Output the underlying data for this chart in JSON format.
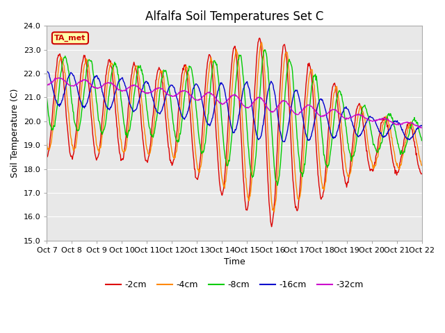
{
  "title": "Alfalfa Soil Temperatures Set C",
  "xlabel": "Time",
  "ylabel": "Soil Temperature (C)",
  "ylim": [
    15.0,
    24.0
  ],
  "yticks": [
    15.0,
    16.0,
    17.0,
    18.0,
    19.0,
    20.0,
    21.0,
    22.0,
    23.0,
    24.0
  ],
  "xtick_labels": [
    "Oct 7",
    "Oct 8",
    "Oct 9",
    "Oct 10",
    "Oct 11",
    "Oct 12",
    "Oct 13",
    "Oct 14",
    "Oct 15",
    "Oct 16",
    "Oct 17",
    "Oct 18",
    "Oct 19",
    "Oct 20",
    "Oct 21",
    "Oct 22"
  ],
  "colors": {
    "-2cm": "#dd0000",
    "-4cm": "#ff8800",
    "-8cm": "#00cc00",
    "-16cm": "#0000cc",
    "-32cm": "#cc00cc"
  },
  "legend_labels": [
    "-2cm",
    "-4cm",
    "-8cm",
    "-16cm",
    "-32cm"
  ],
  "annotation_text": "TA_met",
  "annotation_bg": "#ffffaa",
  "annotation_border": "#cc0000",
  "fig_bg": "#ffffff",
  "plot_bg": "#e8e8e8",
  "title_fontsize": 12,
  "axis_label_fontsize": 9,
  "tick_fontsize": 8
}
